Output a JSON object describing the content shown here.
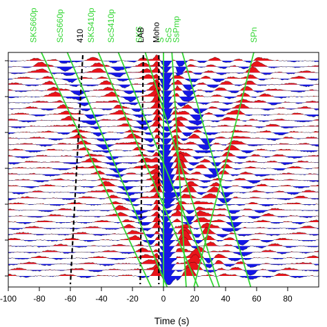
{
  "chart_data": {
    "type": "line",
    "title": "",
    "xlabel": "Time (s)",
    "ylabel": "",
    "xlim": [
      -100,
      100
    ],
    "xticks": [
      -100,
      -80,
      -60,
      -40,
      -20,
      0,
      20,
      40,
      60,
      80
    ],
    "xtick_labels": [
      "-100",
      "-80",
      "-60",
      "-40",
      "-20",
      "0",
      "20",
      "40",
      "60",
      "80"
    ],
    "trace_count": 37,
    "positive_color": "#e8141a",
    "negative_color": "#1417e6",
    "phase_color": "#33d633",
    "marker_color": "#000000",
    "green_phases": [
      {
        "name": "SKS660p",
        "x": [
          -82,
          -5
        ]
      },
      {
        "name": "ScS660p",
        "x": [
          -65,
          5
        ]
      },
      {
        "name": "SKS410p",
        "x": [
          -45,
          25
        ]
      },
      {
        "name": "ScS410p",
        "x": [
          -32,
          35
        ]
      },
      {
        "name": "SKS",
        "x": [
          -14,
          38
        ]
      },
      {
        "name": "S",
        "x": [
          0,
          0
        ]
      },
      {
        "name": "ScS",
        "x": [
          5,
          15
        ]
      },
      {
        "name": "SsPmp",
        "x": [
          10,
          58
        ]
      },
      {
        "name": "SPn",
        "x": [
          60,
          18
        ]
      }
    ],
    "dashed_markers": [
      {
        "name": "410",
        "x": [
          -52,
          -60
        ]
      },
      {
        "name": "LAB",
        "x": [
          -13,
          -15
        ]
      },
      {
        "name": "Moho",
        "x": [
          -3,
          -3
        ]
      }
    ]
  },
  "labels": {
    "xlabel": "Time (s)"
  }
}
